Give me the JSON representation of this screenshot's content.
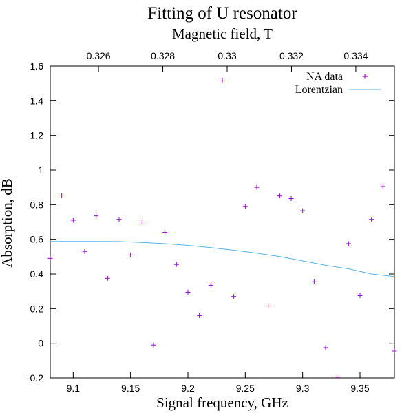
{
  "chart_data": {
    "type": "scatter",
    "title": "Fitting of U resonator",
    "subtitle": "Magnetic field, T",
    "xlabel": "Signal frequency, GHz",
    "ylabel": "Absorption, dB",
    "xlim": [
      9.08,
      9.38
    ],
    "ylim": [
      -0.2,
      1.6
    ],
    "x2lim": [
      0.3245,
      0.3352
    ],
    "grid": false,
    "legend_position": "top-right",
    "x_ticks": [
      "9.1",
      "9.15",
      "9.2",
      "9.25",
      "9.3",
      "9.35"
    ],
    "x_tick_values": [
      9.1,
      9.15,
      9.2,
      9.25,
      9.3,
      9.35
    ],
    "y_ticks": [
      "-0.2",
      "0",
      "0.2",
      "0.4",
      "0.6",
      "0.8",
      "1",
      "1.2",
      "1.4",
      "1.6"
    ],
    "y_tick_values": [
      -0.2,
      0,
      0.2,
      0.4,
      0.6,
      0.8,
      1.0,
      1.2,
      1.4,
      1.6
    ],
    "x2_ticks": [
      "0.326",
      "0.328",
      "0.33",
      "0.332",
      "0.334"
    ],
    "x2_tick_values": [
      0.326,
      0.328,
      0.33,
      0.332,
      0.334
    ],
    "series": [
      {
        "name": "NA data",
        "style": "points",
        "marker": "plus",
        "color": "#9400d3",
        "x": [
          9.08,
          9.09,
          9.1,
          9.11,
          9.12,
          9.13,
          9.14,
          9.15,
          9.16,
          9.17,
          9.18,
          9.19,
          9.2,
          9.21,
          9.22,
          9.23,
          9.24,
          9.25,
          9.26,
          9.27,
          9.28,
          9.29,
          9.3,
          9.31,
          9.32,
          9.33,
          9.34,
          9.35,
          9.355,
          9.36,
          9.37,
          9.38
        ],
        "y": [
          0.49,
          0.855,
          0.71,
          0.53,
          0.735,
          0.375,
          0.715,
          0.51,
          0.7,
          -0.01,
          0.64,
          0.455,
          0.295,
          0.16,
          0.335,
          1.515,
          0.27,
          0.79,
          0.9,
          0.215,
          0.85,
          0.835,
          0.765,
          0.355,
          -0.025,
          -0.195,
          0.575,
          0.275,
          1.54,
          0.715,
          0.905,
          -0.045
        ]
      },
      {
        "name": "Lorentzian",
        "style": "line",
        "color": "#56b4e9",
        "x": [
          9.08,
          9.1,
          9.12,
          9.14,
          9.16,
          9.18,
          9.2,
          9.22,
          9.24,
          9.26,
          9.28,
          9.3,
          9.32,
          9.34,
          9.36,
          9.38
        ],
        "y": [
          0.588,
          0.588,
          0.588,
          0.587,
          0.582,
          0.575,
          0.565,
          0.552,
          0.537,
          0.52,
          0.5,
          0.476,
          0.45,
          0.43,
          0.4,
          0.385
        ]
      }
    ]
  }
}
